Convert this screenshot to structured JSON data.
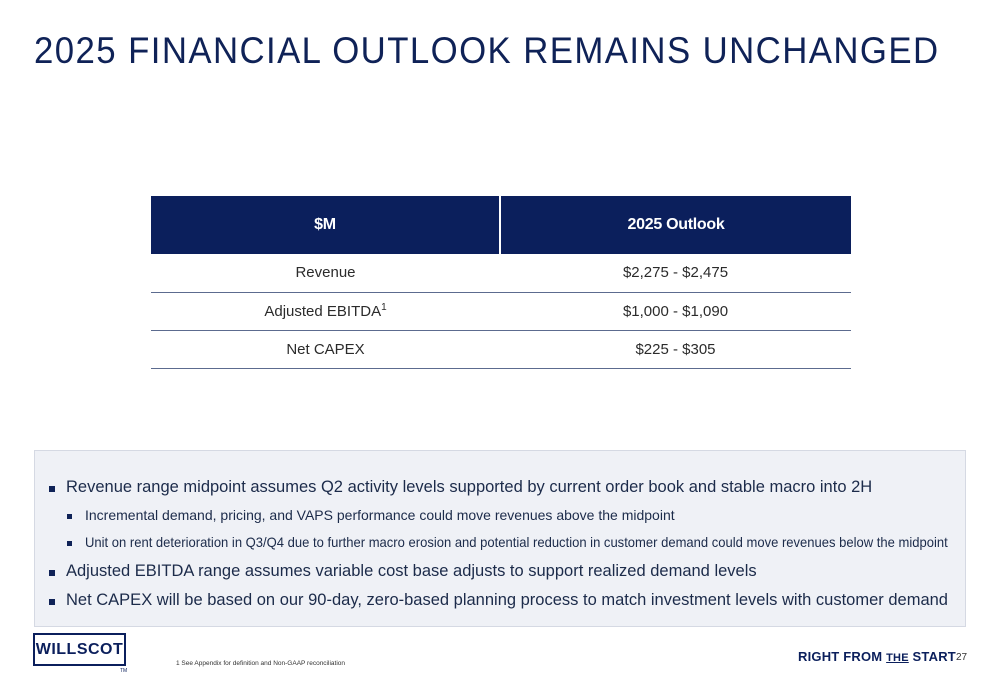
{
  "title": "2025 FINANCIAL OUTLOOK REMAINS UNCHANGED",
  "table": {
    "headers": [
      "$M",
      "2025 Outlook"
    ],
    "rows": [
      {
        "label": "Revenue",
        "sup": "",
        "value": "$2,275 - $2,475"
      },
      {
        "label": "Adjusted EBITDA",
        "sup": "1",
        "value": "$1,000 - $1,090"
      },
      {
        "label": "Net CAPEX",
        "sup": "",
        "value": "$225 - $305"
      }
    ]
  },
  "notes": [
    "Revenue range midpoint assumes Q2 activity levels supported by current order book and stable macro into 2H",
    "Incremental demand, pricing, and VAPS performance could move revenues above the midpoint",
    "Unit on rent deterioration in Q3/Q4 due to further macro erosion and potential reduction in customer demand could move revenues below the midpoint",
    "Adjusted EBITDA range assumes variable cost base adjusts to support realized demand levels",
    "Net CAPEX will be based on our 90-day, zero-based planning process to match investment levels with customer demand"
  ],
  "footer": {
    "logo_text": "WILLSCOT",
    "logo_tm": "TM",
    "footnote": "1 See Appendix for definition and Non-GAAP reconciliation",
    "tagline_pre": "RIGHT FROM ",
    "tagline_the": "THE",
    "tagline_post": " START",
    "page_number": "27"
  },
  "colors": {
    "navy": "#0b1f5c",
    "panel_bg": "#eff1f6"
  }
}
